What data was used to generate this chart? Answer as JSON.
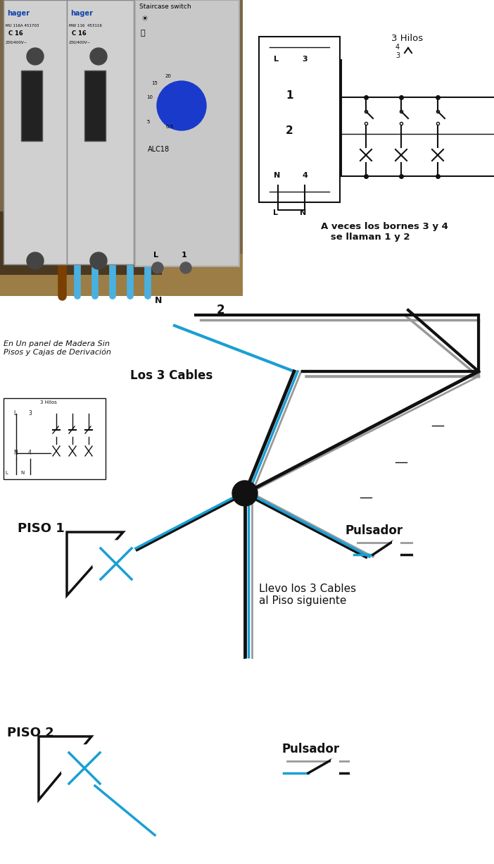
{
  "bg_color": "#ffffff",
  "blue": "#1a9fd4",
  "gray": "#999999",
  "black": "#111111",
  "label_los3cables": "Los 3 Cables",
  "label_piso1": "PISO 1",
  "label_piso2": "PISO 2",
  "label_pulsador1": "Pulsador",
  "label_pulsador2": "Pulsador",
  "label_llevo": "Llevo los 3 Cables\nal Piso siguiente",
  "label_panel": "En Un panel de Madera Sin\nPisos y Cajas de Derivación",
  "label_3hilos_top": "3 Hilos",
  "label_aveces": "A veces los bornes 3 y 4\n   se llaman 1 y 2",
  "label_number2": "2",
  "photo_bg": "#7a6645",
  "photo_dark": "#4a3820",
  "cable_brown": "#7B3F00",
  "device_gray": "#c8c8c8",
  "device_edge": "#aaaaaa",
  "dial_blue": "#1a3acc",
  "hager_blue": "#1144aa",
  "hager_bg": "#dddddd"
}
